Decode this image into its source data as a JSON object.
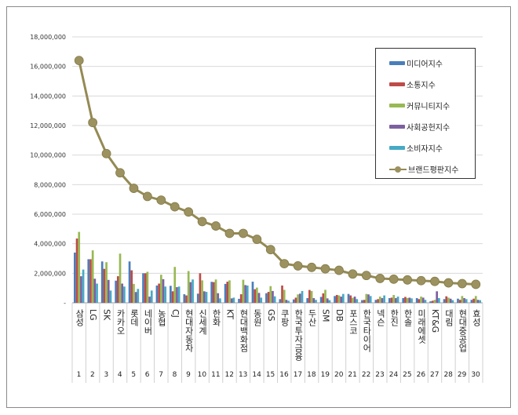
{
  "chart_data": {
    "type": "bar",
    "title": "",
    "xlabel": "",
    "ylabel": "",
    "ylim": [
      0,
      18000000
    ],
    "yticks": [
      "-",
      "2,000,000",
      "4,000,000",
      "6,000,000",
      "8,000,000",
      "10,000,000",
      "12,000,000",
      "14,000,000",
      "16,000,000",
      "18,000,000"
    ],
    "grid": true,
    "legend_position": "top-right",
    "categories": [
      "삼성",
      "LG",
      "SK",
      "카카오",
      "롯데",
      "네이버",
      "농협",
      "CJ",
      "현대자동차",
      "신세계",
      "한화",
      "KT",
      "현대백화점",
      "동원",
      "GS",
      "쿠팡",
      "한국투자금융",
      "두산",
      "SM",
      "DB",
      "포스코",
      "한국타이어",
      "넥슨",
      "한진",
      "한솔",
      "미래에셋",
      "KT&G",
      "대림",
      "현대중공업",
      "효성"
    ],
    "ranks": [
      "1",
      "2",
      "3",
      "4",
      "5",
      "6",
      "7",
      "8",
      "9",
      "10",
      "11",
      "12",
      "13",
      "14",
      "15",
      "16",
      "17",
      "18",
      "19",
      "20",
      "21",
      "22",
      "23",
      "24",
      "25",
      "26",
      "27",
      "28",
      "29",
      "30"
    ],
    "series": [
      {
        "name": "미디어지수",
        "type": "bar",
        "color": "#4a7ebb",
        "values": [
          3400000,
          2950000,
          2800000,
          1500000,
          2800000,
          2000000,
          1170000,
          1150000,
          580000,
          620000,
          1420000,
          1280000,
          270000,
          1430000,
          650000,
          250000,
          230000,
          320000,
          400000,
          460000,
          600000,
          180000,
          200000,
          320000,
          320000,
          320000,
          100000,
          250000,
          280000,
          200000
        ]
      },
      {
        "name": "소통지수",
        "type": "bar",
        "color": "#be4b48",
        "values": [
          4350000,
          2950000,
          2300000,
          1800000,
          2200000,
          2000000,
          1300000,
          780000,
          500000,
          2000000,
          1400000,
          1430000,
          580000,
          920000,
          740000,
          1170000,
          350000,
          870000,
          640000,
          530000,
          500000,
          200000,
          250000,
          350000,
          400000,
          250000,
          140000,
          440000,
          200000,
          280000
        ]
      },
      {
        "name": "커뮤니티지수",
        "type": "bar",
        "color": "#98b954",
        "values": [
          4800000,
          3550000,
          2750000,
          3330000,
          1280000,
          2100000,
          1900000,
          2430000,
          2150000,
          1520000,
          1580000,
          1520000,
          1560000,
          1030000,
          1130000,
          880000,
          570000,
          800000,
          880000,
          500000,
          340000,
          600000,
          420000,
          530000,
          320000,
          420000,
          200000,
          350000,
          460000,
          460000
        ]
      },
      {
        "name": "사회공헌지수",
        "type": "bar",
        "color": "#7d60a0",
        "values": [
          1800000,
          1630000,
          1550000,
          1300000,
          730000,
          420000,
          1600000,
          1060000,
          1400000,
          780000,
          650000,
          300000,
          1200000,
          670000,
          800000,
          200000,
          620000,
          320000,
          300000,
          420000,
          420000,
          570000,
          320000,
          320000,
          350000,
          350000,
          780000,
          280000,
          320000,
          200000
        ]
      },
      {
        "name": "소비자지수",
        "type": "bar",
        "color": "#46aac5",
        "values": [
          2250000,
          1300000,
          830000,
          1100000,
          940000,
          830000,
          1100000,
          1100000,
          1580000,
          740000,
          300000,
          350000,
          1170000,
          350000,
          440000,
          140000,
          800000,
          200000,
          180000,
          600000,
          250000,
          460000,
          500000,
          420000,
          300000,
          200000,
          320000,
          180000,
          250000,
          180000
        ]
      },
      {
        "name": "브랜드평판지수",
        "type": "line",
        "color": "#948a54",
        "values": [
          16400000,
          12200000,
          10100000,
          8800000,
          7750000,
          7200000,
          6950000,
          6500000,
          6150000,
          5500000,
          5200000,
          4700000,
          4700000,
          4300000,
          3600000,
          2650000,
          2500000,
          2400000,
          2300000,
          2200000,
          1950000,
          1850000,
          1650000,
          1600000,
          1550000,
          1500000,
          1450000,
          1350000,
          1300000,
          1250000
        ]
      }
    ]
  }
}
